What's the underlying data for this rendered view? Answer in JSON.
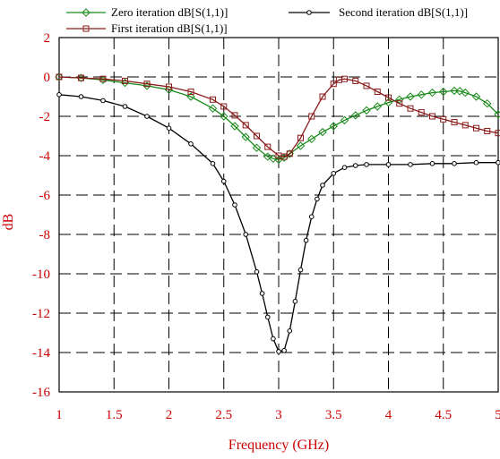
{
  "chart_data": {
    "type": "line",
    "xlabel": "Frequency (GHz)",
    "ylabel": "dB",
    "xlim": [
      1,
      5
    ],
    "ylim": [
      -16,
      2
    ],
    "grid": true,
    "legend_placement": "top",
    "xticks": [
      "1",
      "1.5",
      "2",
      "2.5",
      "3",
      "3.5",
      "4",
      "4.5",
      "5"
    ],
    "yticks": [
      "2",
      "0",
      "-2",
      "-4",
      "-6",
      "-8",
      "-10",
      "-12",
      "-14",
      "-16"
    ],
    "series": [
      {
        "name": "Zero iteration dB[S(1,1)]",
        "color": "#1a8a1a",
        "marker": "diamond",
        "x": [
          1.0,
          1.2,
          1.4,
          1.6,
          1.8,
          2.0,
          2.2,
          2.4,
          2.5,
          2.6,
          2.7,
          2.8,
          2.9,
          2.95,
          3.0,
          3.05,
          3.1,
          3.2,
          3.3,
          3.4,
          3.5,
          3.6,
          3.7,
          3.8,
          3.9,
          4.0,
          4.1,
          4.2,
          4.3,
          4.4,
          4.5,
          4.6,
          4.65,
          4.7,
          4.8,
          4.9,
          5.0
        ],
        "y": [
          0.0,
          -0.05,
          -0.15,
          -0.3,
          -0.45,
          -0.65,
          -1.0,
          -1.6,
          -2.0,
          -2.5,
          -3.05,
          -3.6,
          -4.05,
          -4.15,
          -4.2,
          -4.1,
          -3.9,
          -3.5,
          -3.15,
          -2.8,
          -2.5,
          -2.2,
          -1.95,
          -1.7,
          -1.5,
          -1.3,
          -1.15,
          -1.0,
          -0.9,
          -0.8,
          -0.75,
          -0.7,
          -0.72,
          -0.8,
          -1.0,
          -1.35,
          -1.9
        ]
      },
      {
        "name": "First iteration dB[S(1,1)]",
        "color": "#8b1a1a",
        "marker": "square",
        "x": [
          1.0,
          1.2,
          1.4,
          1.6,
          1.8,
          2.0,
          2.2,
          2.4,
          2.5,
          2.6,
          2.7,
          2.8,
          2.9,
          3.0,
          3.05,
          3.1,
          3.2,
          3.3,
          3.4,
          3.5,
          3.55,
          3.6,
          3.7,
          3.8,
          3.9,
          4.0,
          4.1,
          4.2,
          4.3,
          4.4,
          4.5,
          4.6,
          4.7,
          4.8,
          4.9,
          5.0
        ],
        "y": [
          0.0,
          -0.05,
          -0.1,
          -0.2,
          -0.35,
          -0.5,
          -0.75,
          -1.15,
          -1.5,
          -1.95,
          -2.45,
          -3.0,
          -3.55,
          -4.0,
          -4.05,
          -3.9,
          -3.1,
          -2.0,
          -1.0,
          -0.35,
          -0.15,
          -0.1,
          -0.2,
          -0.45,
          -0.75,
          -1.05,
          -1.35,
          -1.6,
          -1.8,
          -2.0,
          -2.15,
          -2.3,
          -2.45,
          -2.6,
          -2.75,
          -2.85
        ]
      },
      {
        "name": "Second iteration dB[S(1,1)]",
        "color": "#000000",
        "marker": "circle",
        "x": [
          1.0,
          1.2,
          1.4,
          1.6,
          1.8,
          2.0,
          2.2,
          2.4,
          2.5,
          2.6,
          2.7,
          2.8,
          2.85,
          2.9,
          2.95,
          3.0,
          3.05,
          3.1,
          3.15,
          3.2,
          3.25,
          3.3,
          3.35,
          3.4,
          3.5,
          3.6,
          3.7,
          3.8,
          4.0,
          4.2,
          4.4,
          4.6,
          4.8,
          5.0
        ],
        "y": [
          -0.9,
          -1.0,
          -1.2,
          -1.5,
          -2.0,
          -2.6,
          -3.4,
          -4.4,
          -5.3,
          -6.5,
          -8.0,
          -9.9,
          -11.0,
          -12.2,
          -13.3,
          -13.95,
          -13.9,
          -12.9,
          -11.4,
          -9.8,
          -8.3,
          -7.1,
          -6.2,
          -5.5,
          -4.9,
          -4.6,
          -4.5,
          -4.45,
          -4.45,
          -4.45,
          -4.4,
          -4.4,
          -4.35,
          -4.35
        ]
      }
    ]
  }
}
